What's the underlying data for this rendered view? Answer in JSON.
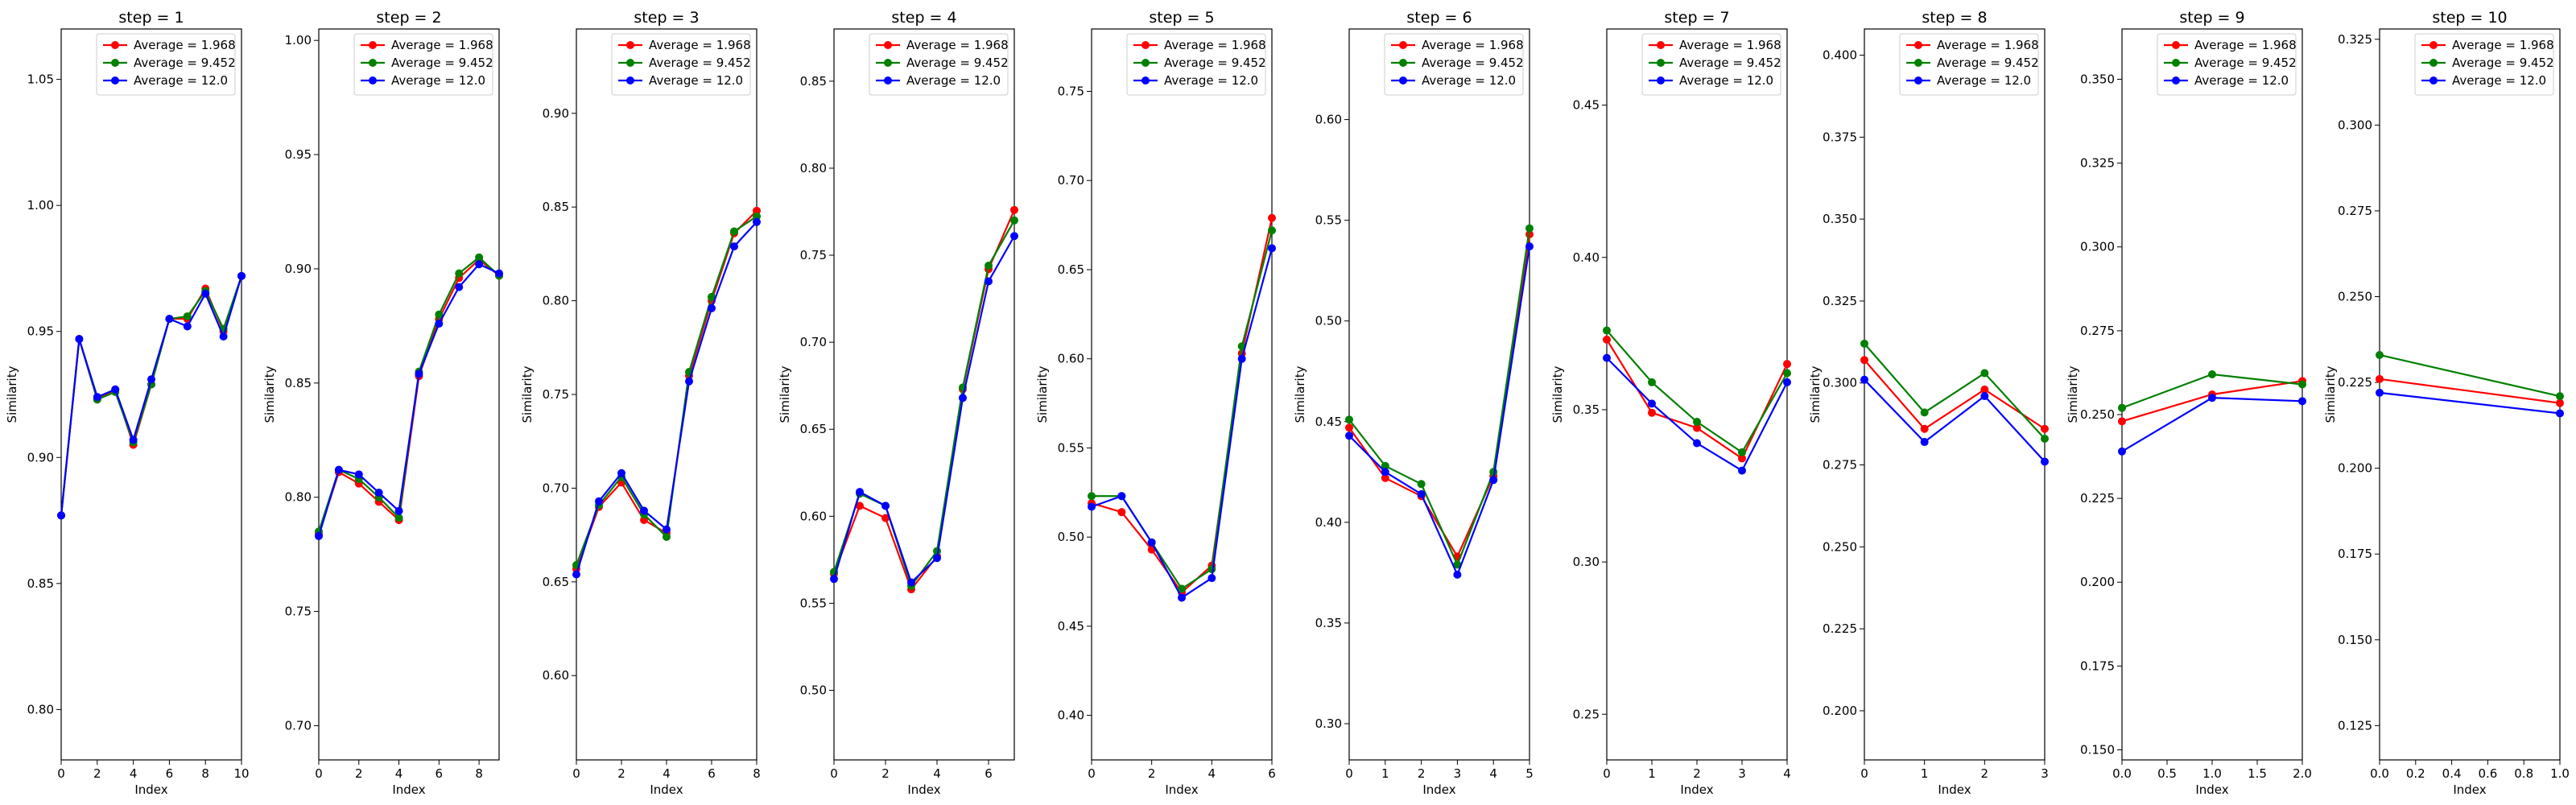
{
  "chart_data": [
    {
      "type": "line",
      "title": "step = 1",
      "xlabel": "Index",
      "ylabel": "Similarity",
      "xlim": [
        0,
        10
      ],
      "ylim": [
        0.78,
        1.07
      ],
      "xticks": [
        "0",
        "2",
        "4",
        "6",
        "8",
        "10"
      ],
      "yticks": [
        "0.80",
        "0.85",
        "0.90",
        "0.95",
        "1.00",
        "1.05"
      ],
      "x": [
        0,
        1,
        2,
        3,
        4,
        5,
        6,
        7,
        8,
        9,
        10
      ],
      "series": [
        {
          "name": "Average = 1.968",
          "color": "#ff0000",
          "values": [
            0.877,
            0.947,
            0.923,
            0.927,
            0.905,
            0.929,
            0.955,
            0.955,
            0.967,
            0.95,
            0.972
          ]
        },
        {
          "name": "Average = 9.452",
          "color": "#008000",
          "values": [
            0.877,
            0.947,
            0.923,
            0.926,
            0.906,
            0.929,
            0.955,
            0.956,
            0.966,
            0.951,
            0.972
          ]
        },
        {
          "name": "Average = 12.0",
          "color": "#0000ff",
          "values": [
            0.877,
            0.947,
            0.924,
            0.927,
            0.907,
            0.931,
            0.955,
            0.952,
            0.965,
            0.948,
            0.972
          ]
        }
      ],
      "legend": "upper right"
    },
    {
      "type": "line",
      "title": "step = 2",
      "xlabel": "Index",
      "ylabel": "Similarity",
      "xlim": [
        0,
        9
      ],
      "ylim": [
        0.685,
        1.005
      ],
      "xticks": [
        "0",
        "2",
        "4",
        "6",
        "8"
      ],
      "yticks": [
        "0.70",
        "0.75",
        "0.80",
        "0.85",
        "0.90",
        "0.95",
        "1.00"
      ],
      "x": [
        0,
        1,
        2,
        3,
        4,
        5,
        6,
        7,
        8,
        9
      ],
      "series": [
        {
          "name": "Average = 1.968",
          "color": "#ff0000",
          "values": [
            0.784,
            0.811,
            0.806,
            0.798,
            0.79,
            0.853,
            0.878,
            0.896,
            0.904,
            0.897
          ]
        },
        {
          "name": "Average = 9.452",
          "color": "#008000",
          "values": [
            0.785,
            0.812,
            0.808,
            0.8,
            0.791,
            0.855,
            0.88,
            0.898,
            0.905,
            0.897
          ]
        },
        {
          "name": "Average = 12.0",
          "color": "#0000ff",
          "values": [
            0.783,
            0.812,
            0.81,
            0.802,
            0.794,
            0.854,
            0.876,
            0.892,
            0.902,
            0.898
          ]
        }
      ],
      "legend": "upper right"
    },
    {
      "type": "line",
      "title": "step = 3",
      "xlabel": "Index",
      "ylabel": "Similarity",
      "xlim": [
        0,
        8
      ],
      "ylim": [
        0.555,
        0.945
      ],
      "xticks": [
        "0",
        "2",
        "4",
        "6",
        "8"
      ],
      "yticks": [
        "0.60",
        "0.65",
        "0.70",
        "0.75",
        "0.80",
        "0.85",
        "0.90"
      ],
      "x": [
        0,
        1,
        2,
        3,
        4,
        5,
        6,
        7,
        8
      ],
      "series": [
        {
          "name": "Average = 1.968",
          "color": "#ff0000",
          "values": [
            0.657,
            0.69,
            0.703,
            0.683,
            0.676,
            0.76,
            0.8,
            0.836,
            0.848
          ]
        },
        {
          "name": "Average = 9.452",
          "color": "#008000",
          "values": [
            0.659,
            0.691,
            0.706,
            0.686,
            0.674,
            0.762,
            0.802,
            0.837,
            0.845
          ]
        },
        {
          "name": "Average = 12.0",
          "color": "#0000ff",
          "values": [
            0.654,
            0.693,
            0.708,
            0.688,
            0.678,
            0.757,
            0.796,
            0.829,
            0.842
          ]
        }
      ],
      "legend": "upper right"
    },
    {
      "type": "line",
      "title": "step = 4",
      "xlabel": "Index",
      "ylabel": "Similarity",
      "xlim": [
        0,
        7
      ],
      "ylim": [
        0.46,
        0.88
      ],
      "xticks": [
        "0",
        "2",
        "4",
        "6"
      ],
      "yticks": [
        "0.50",
        "0.55",
        "0.60",
        "0.65",
        "0.70",
        "0.75",
        "0.80",
        "0.85"
      ],
      "x": [
        0,
        1,
        2,
        3,
        4,
        5,
        6,
        7
      ],
      "series": [
        {
          "name": "Average = 1.968",
          "color": "#ff0000",
          "values": [
            0.567,
            0.606,
            0.599,
            0.558,
            0.577,
            0.673,
            0.742,
            0.776
          ]
        },
        {
          "name": "Average = 9.452",
          "color": "#008000",
          "values": [
            0.568,
            0.613,
            0.606,
            0.56,
            0.58,
            0.674,
            0.744,
            0.77
          ]
        },
        {
          "name": "Average = 12.0",
          "color": "#0000ff",
          "values": [
            0.564,
            0.614,
            0.606,
            0.562,
            0.576,
            0.668,
            0.735,
            0.761
          ]
        }
      ],
      "legend": "upper right"
    },
    {
      "type": "line",
      "title": "step = 5",
      "xlabel": "Index",
      "ylabel": "Similarity",
      "xlim": [
        0,
        6
      ],
      "ylim": [
        0.375,
        0.785
      ],
      "xticks": [
        "0",
        "2",
        "4",
        "6"
      ],
      "yticks": [
        "0.40",
        "0.45",
        "0.50",
        "0.55",
        "0.60",
        "0.65",
        "0.70",
        "0.75"
      ],
      "x": [
        0,
        1,
        2,
        3,
        4,
        5,
        6
      ],
      "series": [
        {
          "name": "Average = 1.968",
          "color": "#ff0000",
          "values": [
            0.519,
            0.514,
            0.493,
            0.469,
            0.484,
            0.603,
            0.679
          ]
        },
        {
          "name": "Average = 9.452",
          "color": "#008000",
          "values": [
            0.523,
            0.523,
            0.497,
            0.471,
            0.482,
            0.607,
            0.672
          ]
        },
        {
          "name": "Average = 12.0",
          "color": "#0000ff",
          "values": [
            0.517,
            0.523,
            0.497,
            0.466,
            0.477,
            0.6,
            0.662
          ]
        }
      ],
      "legend": "upper right"
    },
    {
      "type": "line",
      "title": "step = 6",
      "xlabel": "Index",
      "ylabel": "Similarity",
      "xlim": [
        0,
        5
      ],
      "ylim": [
        0.282,
        0.645
      ],
      "xticks": [
        "0",
        "1",
        "2",
        "3",
        "4",
        "5"
      ],
      "yticks": [
        "0.30",
        "0.35",
        "0.40",
        "0.45",
        "0.50",
        "0.55",
        "0.60"
      ],
      "x": [
        0,
        1,
        2,
        3,
        4,
        5
      ],
      "series": [
        {
          "name": "Average = 1.968",
          "color": "#ff0000",
          "values": [
            0.447,
            0.422,
            0.413,
            0.383,
            0.423,
            0.543
          ]
        },
        {
          "name": "Average = 9.452",
          "color": "#008000",
          "values": [
            0.451,
            0.428,
            0.419,
            0.379,
            0.425,
            0.546
          ]
        },
        {
          "name": "Average = 12.0",
          "color": "#0000ff",
          "values": [
            0.443,
            0.425,
            0.414,
            0.374,
            0.421,
            0.537
          ]
        }
      ],
      "legend": "upper right"
    },
    {
      "type": "line",
      "title": "step = 7",
      "xlabel": "Index",
      "ylabel": "Similarity",
      "xlim": [
        0,
        4
      ],
      "ylim": [
        0.235,
        0.475
      ],
      "xticks": [
        "0",
        "1",
        "2",
        "3",
        "4"
      ],
      "yticks": [
        "0.25",
        "0.30",
        "0.35",
        "0.40",
        "0.45"
      ],
      "x": [
        0,
        1,
        2,
        3,
        4
      ],
      "series": [
        {
          "name": "Average = 1.968",
          "color": "#ff0000",
          "values": [
            0.373,
            0.349,
            0.344,
            0.334,
            0.365
          ]
        },
        {
          "name": "Average = 9.452",
          "color": "#008000",
          "values": [
            0.376,
            0.359,
            0.346,
            0.336,
            0.362
          ]
        },
        {
          "name": "Average = 12.0",
          "color": "#0000ff",
          "values": [
            0.367,
            0.352,
            0.339,
            0.33,
            0.359
          ]
        }
      ],
      "legend": "upper right"
    },
    {
      "type": "line",
      "title": "step = 8",
      "xlabel": "Index",
      "ylabel": "Similarity",
      "xlim": [
        0,
        3
      ],
      "ylim": [
        0.185,
        0.408
      ],
      "xticks": [
        "0",
        "1",
        "2",
        "3"
      ],
      "yticks": [
        "0.200",
        "0.225",
        "0.250",
        "0.275",
        "0.300",
        "0.325",
        "0.350",
        "0.375",
        "0.400"
      ],
      "x": [
        0,
        1,
        2,
        3
      ],
      "series": [
        {
          "name": "Average = 1.968",
          "color": "#ff0000",
          "values": [
            0.307,
            0.286,
            0.298,
            0.286
          ]
        },
        {
          "name": "Average = 9.452",
          "color": "#008000",
          "values": [
            0.312,
            0.291,
            0.303,
            0.283
          ]
        },
        {
          "name": "Average = 12.0",
          "color": "#0000ff",
          "values": [
            0.301,
            0.282,
            0.296,
            0.276
          ]
        }
      ],
      "legend": "upper right"
    },
    {
      "type": "line",
      "title": "step = 9",
      "xlabel": "Index",
      "ylabel": "Similarity",
      "xlim": [
        0,
        2
      ],
      "ylim": [
        0.147,
        0.365
      ],
      "xticks": [
        "0.0",
        "0.5",
        "1.0",
        "1.5",
        "2.0"
      ],
      "yticks": [
        "0.150",
        "0.175",
        "0.200",
        "0.225",
        "0.250",
        "0.275",
        "0.300",
        "0.325",
        "0.350"
      ],
      "x": [
        0,
        1,
        2
      ],
      "series": [
        {
          "name": "Average = 1.968",
          "color": "#ff0000",
          "values": [
            0.248,
            0.256,
            0.26
          ]
        },
        {
          "name": "Average = 9.452",
          "color": "#008000",
          "values": [
            0.252,
            0.262,
            0.259
          ]
        },
        {
          "name": "Average = 12.0",
          "color": "#0000ff",
          "values": [
            0.239,
            0.255,
            0.254
          ]
        }
      ],
      "legend": "upper right"
    },
    {
      "type": "line",
      "title": "step = 10",
      "xlabel": "Index",
      "ylabel": "Similarity",
      "xlim": [
        0,
        1
      ],
      "ylim": [
        0.115,
        0.328
      ],
      "xticks": [
        "0.0",
        "0.2",
        "0.4",
        "0.6",
        "0.8",
        "1.0"
      ],
      "yticks": [
        "0.125",
        "0.150",
        "0.175",
        "0.200",
        "0.225",
        "0.250",
        "0.275",
        "0.300",
        "0.325"
      ],
      "x": [
        0,
        1
      ],
      "series": [
        {
          "name": "Average = 1.968",
          "color": "#ff0000",
          "values": [
            0.226,
            0.219
          ]
        },
        {
          "name": "Average = 9.452",
          "color": "#008000",
          "values": [
            0.233,
            0.221
          ]
        },
        {
          "name": "Average = 12.0",
          "color": "#0000ff",
          "values": [
            0.222,
            0.216
          ]
        }
      ],
      "legend": "upper right"
    }
  ]
}
